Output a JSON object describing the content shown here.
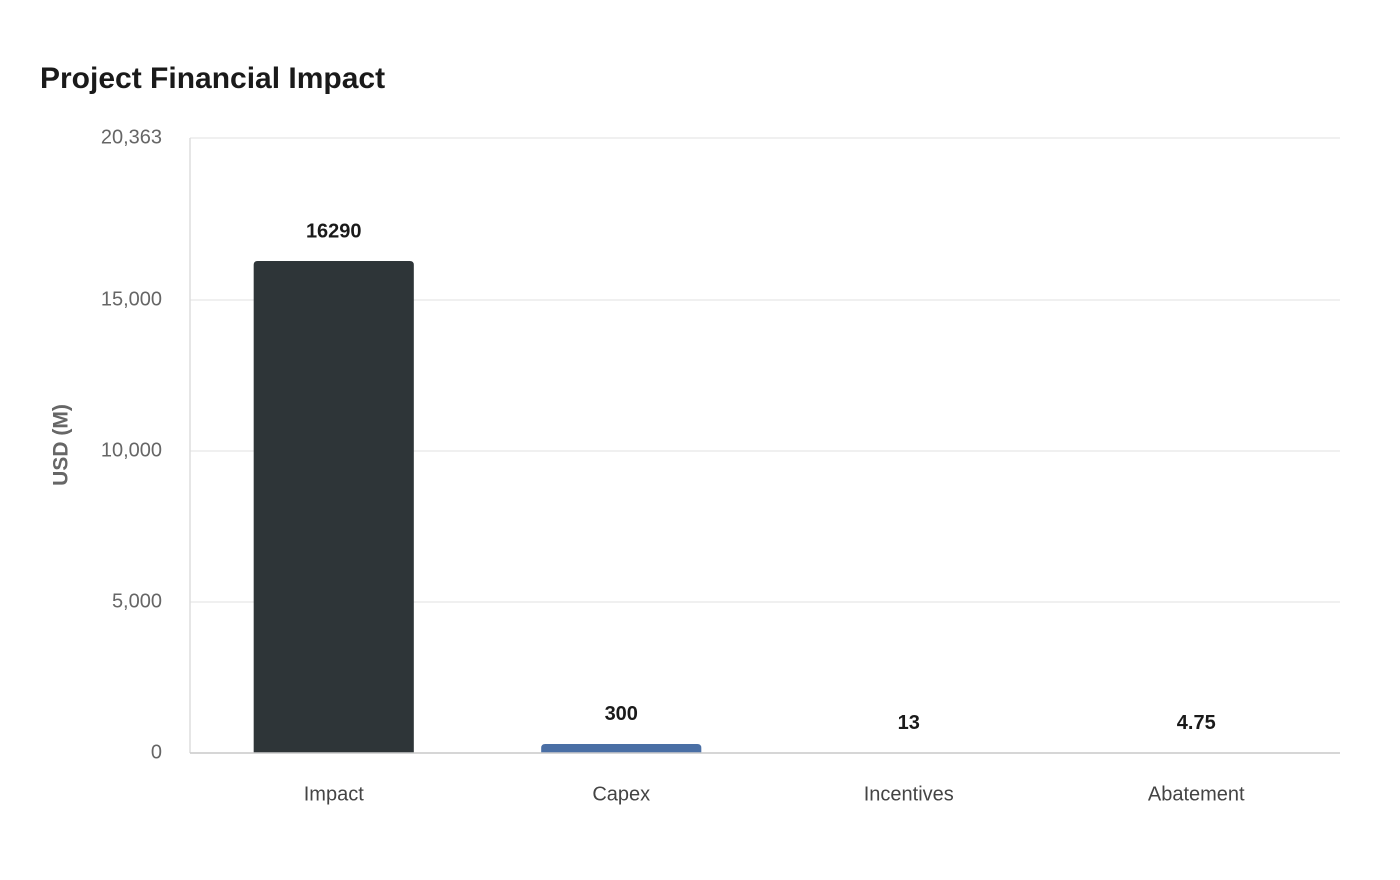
{
  "chart_data": {
    "type": "bar",
    "title": "Project Financial Impact",
    "y_label": "USD (M)",
    "categories": [
      "Impact",
      "Capex",
      "Incentives",
      "Abatement"
    ],
    "values": [
      16290,
      300,
      13,
      4.75
    ],
    "colors": [
      "#2e3538",
      "#4a6fa5",
      "#a9b8c4",
      "#9eadb9"
    ],
    "ylim": [
      0,
      20363
    ],
    "yticks": [
      0,
      {
        "value": 5000,
        "label": "5,000"
      },
      {
        "value": 10000,
        "label": "10,000"
      },
      {
        "value": 15000,
        "label": "15,000"
      },
      {
        "value": 20363,
        "label": "20,363"
      }
    ],
    "grid": true
  }
}
